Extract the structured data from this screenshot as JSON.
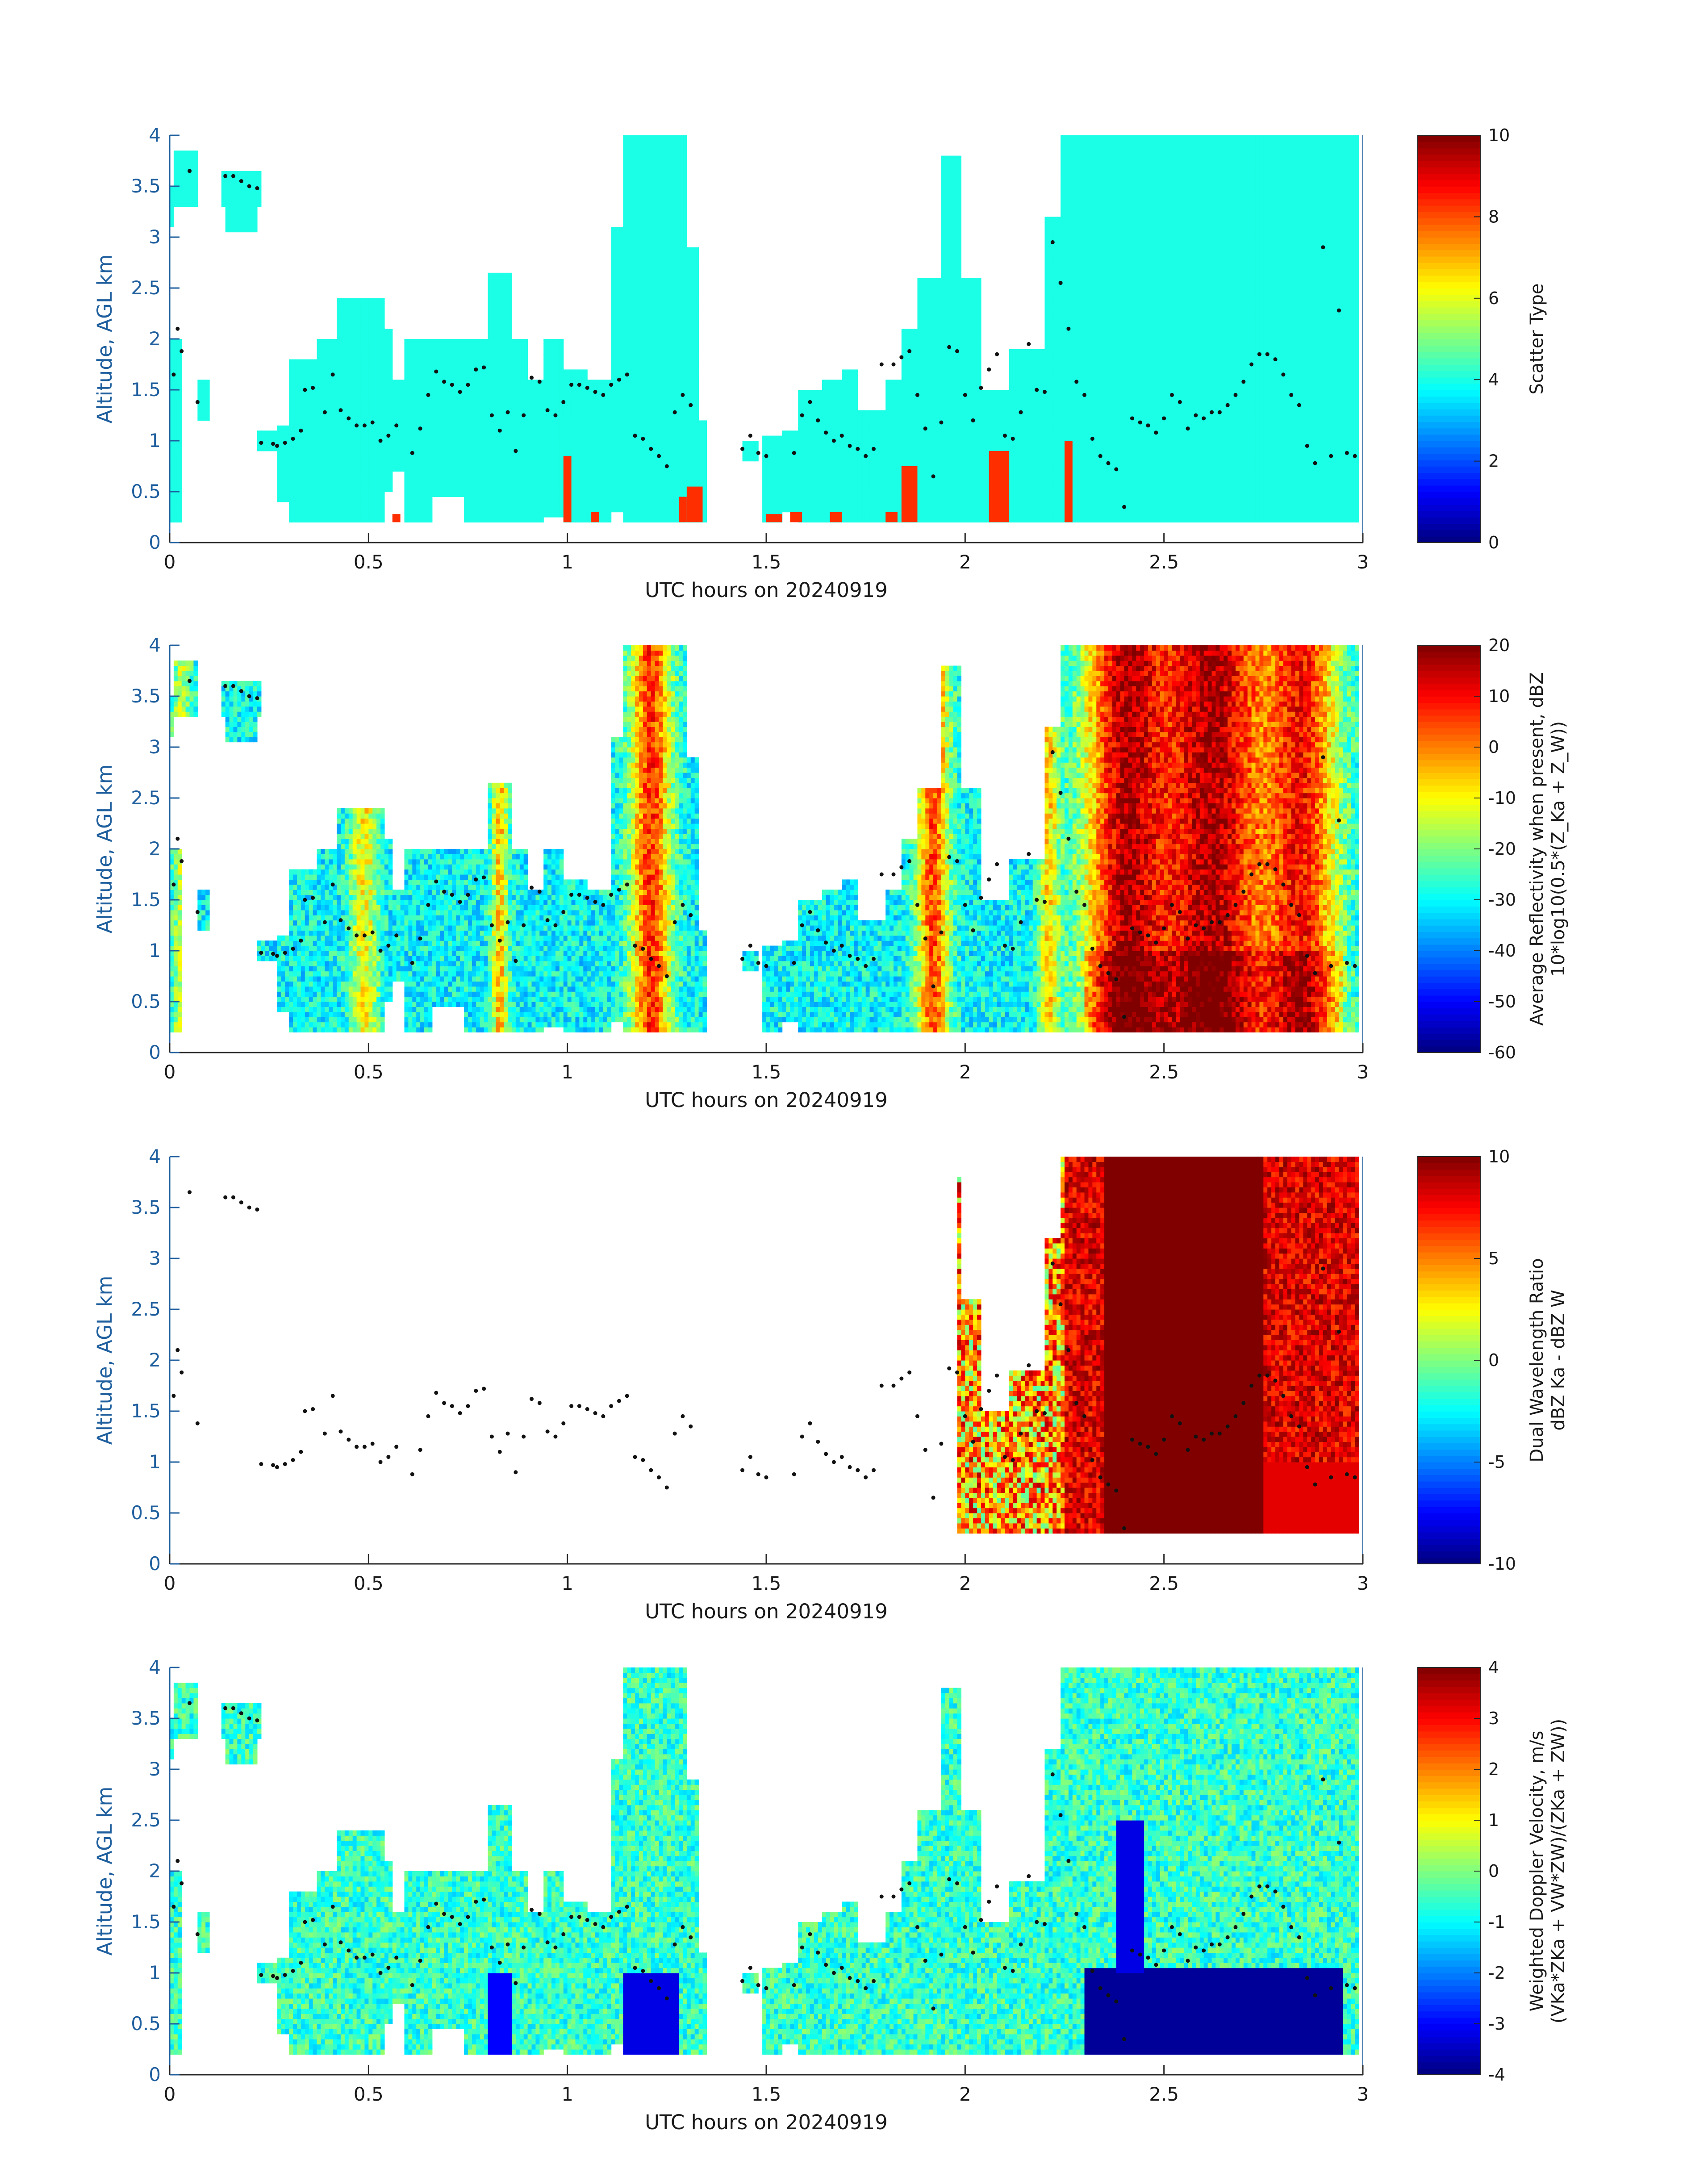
{
  "figure": {
    "background": "#ffffff",
    "axis_color": "#262626",
    "yaxis_color": "#1f5f9e"
  },
  "chart_data": [
    {
      "type": "heatmap",
      "id": "scatter-type",
      "xlabel": "UTC hours on 20240919",
      "ylabel": "Altitude, AGL km",
      "xlim": [
        0,
        3
      ],
      "ylim": [
        0,
        4
      ],
      "xticks": [
        "0",
        "0.5",
        "1",
        "1.5",
        "2",
        "2.5",
        "3"
      ],
      "yticks": [
        "0",
        "0.5",
        "1",
        "1.5",
        "2",
        "2.5",
        "3",
        "3.5",
        "4"
      ],
      "colorbar": {
        "label": "Scatter Type",
        "label_lines": [
          "Scatter Type"
        ],
        "range": [
          0,
          10
        ],
        "ticks": [
          "0",
          "2",
          "4",
          "6",
          "8",
          "10"
        ]
      },
      "mode": "scatter",
      "base_value": 4
    },
    {
      "type": "heatmap",
      "id": "reflectivity",
      "xlabel": "UTC hours on 20240919",
      "ylabel": "Altitude, AGL km",
      "xlim": [
        0,
        3
      ],
      "ylim": [
        0,
        4
      ],
      "xticks": [
        "0",
        "0.5",
        "1",
        "1.5",
        "2",
        "2.5",
        "3"
      ],
      "yticks": [
        "0",
        "0.5",
        "1",
        "1.5",
        "2",
        "2.5",
        "3",
        "3.5",
        "4"
      ],
      "colorbar": {
        "label": "Average Reflectivity when present, dBZ 10*log10(0.5*(Z_Ka + Z_W))",
        "label_lines": [
          "Average Reflectivity when present, dBZ",
          "10*log10(0.5*(Z_Ka + Z_W))"
        ],
        "range": [
          -60,
          20
        ],
        "ticks": [
          "-60",
          "-50",
          "-40",
          "-30",
          "-20",
          "-10",
          "0",
          "10",
          "20"
        ]
      },
      "mode": "reflectivity"
    },
    {
      "type": "heatmap",
      "id": "dual-wavelength-ratio",
      "xlabel": "UTC hours on 20240919",
      "ylabel": "Altitude, AGL km",
      "xlim": [
        0,
        3
      ],
      "ylim": [
        0,
        4
      ],
      "xticks": [
        "0",
        "0.5",
        "1",
        "1.5",
        "2",
        "2.5",
        "3"
      ],
      "yticks": [
        "0",
        "0.5",
        "1",
        "1.5",
        "2",
        "2.5",
        "3",
        "3.5",
        "4"
      ],
      "colorbar": {
        "label": "Dual Wavelength Ratio dBZ_Ka - dBZ_W",
        "label_lines": [
          "Dual Wavelength Ratio",
          "dBZ Ka - dBZ W"
        ],
        "range": [
          -10,
          10
        ],
        "ticks": [
          "-10",
          "-5",
          "0",
          "5",
          "10"
        ]
      },
      "mode": "dwr"
    },
    {
      "type": "heatmap",
      "id": "doppler-velocity",
      "xlabel": "UTC hours on 20240919",
      "ylabel": "Altitude, AGL km",
      "xlim": [
        0,
        3
      ],
      "ylim": [
        0,
        4
      ],
      "xticks": [
        "0",
        "0.5",
        "1",
        "1.5",
        "2",
        "2.5",
        "3"
      ],
      "yticks": [
        "0",
        "0.5",
        "1",
        "1.5",
        "2",
        "2.5",
        "3",
        "3.5",
        "4"
      ],
      "colorbar": {
        "label": "Weighted Doppler Velocity, m/s (V_Ka*Z_Ka + V_W*Z_W)/(Z_Ka + Z_W))",
        "label_lines": [
          "Weighted Doppler Velocity, m/s",
          "(VKa*ZKa + VW*ZW)/(ZKa + ZW))"
        ],
        "range": [
          -4,
          4
        ],
        "ticks": [
          "-4",
          "-3",
          "-2",
          "-1",
          "0",
          "1",
          "2",
          "3",
          "4"
        ]
      },
      "mode": "doppler"
    }
  ],
  "cloud_base_points": {
    "x": [
      0.01,
      0.02,
      0.03,
      0.05,
      0.07,
      0.14,
      0.16,
      0.18,
      0.2,
      0.22,
      0.23,
      0.26,
      0.27,
      0.29,
      0.31,
      0.33,
      0.34,
      0.36,
      0.39,
      0.41,
      0.43,
      0.45,
      0.47,
      0.49,
      0.51,
      0.53,
      0.55,
      0.57,
      0.61,
      0.63,
      0.65,
      0.67,
      0.69,
      0.71,
      0.73,
      0.75,
      0.77,
      0.79,
      0.81,
      0.83,
      0.85,
      0.87,
      0.89,
      0.91,
      0.93,
      0.95,
      0.97,
      0.99,
      1.01,
      1.03,
      1.05,
      1.07,
      1.09,
      1.11,
      1.13,
      1.15,
      1.17,
      1.19,
      1.21,
      1.23,
      1.25,
      1.27,
      1.29,
      1.31,
      1.44,
      1.46,
      1.48,
      1.5,
      1.57,
      1.59,
      1.61,
      1.63,
      1.65,
      1.67,
      1.69,
      1.71,
      1.73,
      1.75,
      1.77,
      1.79,
      1.82,
      1.84,
      1.86,
      1.88,
      1.9,
      1.92,
      1.94,
      1.96,
      1.98,
      2.0,
      2.02,
      2.04,
      2.06,
      2.08,
      2.1,
      2.12,
      2.14,
      2.16,
      2.18,
      2.2,
      2.22,
      2.24,
      2.26,
      2.28,
      2.3,
      2.32,
      2.34,
      2.36,
      2.38,
      2.4,
      2.42,
      2.44,
      2.46,
      2.48,
      2.5,
      2.52,
      2.54,
      2.56,
      2.58,
      2.6,
      2.62,
      2.64,
      2.66,
      2.68,
      2.7,
      2.72,
      2.74,
      2.76,
      2.78,
      2.8,
      2.82,
      2.84,
      2.86,
      2.88,
      2.9,
      2.92,
      2.94,
      2.96,
      2.98
    ],
    "y": [
      1.65,
      2.1,
      1.88,
      3.65,
      1.38,
      3.6,
      3.6,
      3.55,
      3.5,
      3.48,
      0.98,
      0.97,
      0.95,
      0.98,
      1.02,
      1.1,
      1.5,
      1.52,
      1.28,
      1.65,
      1.3,
      1.22,
      1.15,
      1.15,
      1.18,
      1.0,
      1.05,
      1.15,
      0.88,
      1.12,
      1.45,
      1.68,
      1.58,
      1.55,
      1.48,
      1.55,
      1.7,
      1.72,
      1.25,
      1.1,
      1.28,
      0.9,
      1.25,
      1.62,
      1.58,
      1.3,
      1.25,
      1.38,
      1.55,
      1.55,
      1.52,
      1.48,
      1.45,
      1.55,
      1.6,
      1.65,
      1.05,
      1.02,
      0.92,
      0.85,
      0.75,
      1.28,
      1.45,
      1.35,
      0.92,
      1.05,
      0.88,
      0.85,
      0.88,
      1.25,
      1.38,
      1.2,
      1.08,
      1.0,
      1.05,
      0.95,
      0.92,
      0.85,
      0.92,
      1.75,
      1.75,
      1.82,
      1.88,
      1.45,
      1.12,
      0.65,
      1.18,
      1.92,
      1.88,
      1.45,
      1.2,
      1.52,
      1.7,
      1.85,
      1.05,
      1.02,
      1.28,
      1.95,
      1.5,
      1.48,
      2.95,
      2.55,
      2.1,
      1.58,
      1.45,
      1.02,
      0.85,
      0.78,
      0.72,
      0.35,
      1.22,
      1.18,
      1.15,
      1.08,
      1.22,
      1.45,
      1.38,
      1.12,
      1.25,
      1.22,
      1.28,
      1.28,
      1.35,
      1.45,
      1.58,
      1.75,
      1.85,
      1.85,
      1.8,
      1.65,
      1.45,
      1.35,
      0.95,
      0.78,
      2.9,
      0.85,
      2.28,
      0.88,
      0.85
    ]
  }
}
